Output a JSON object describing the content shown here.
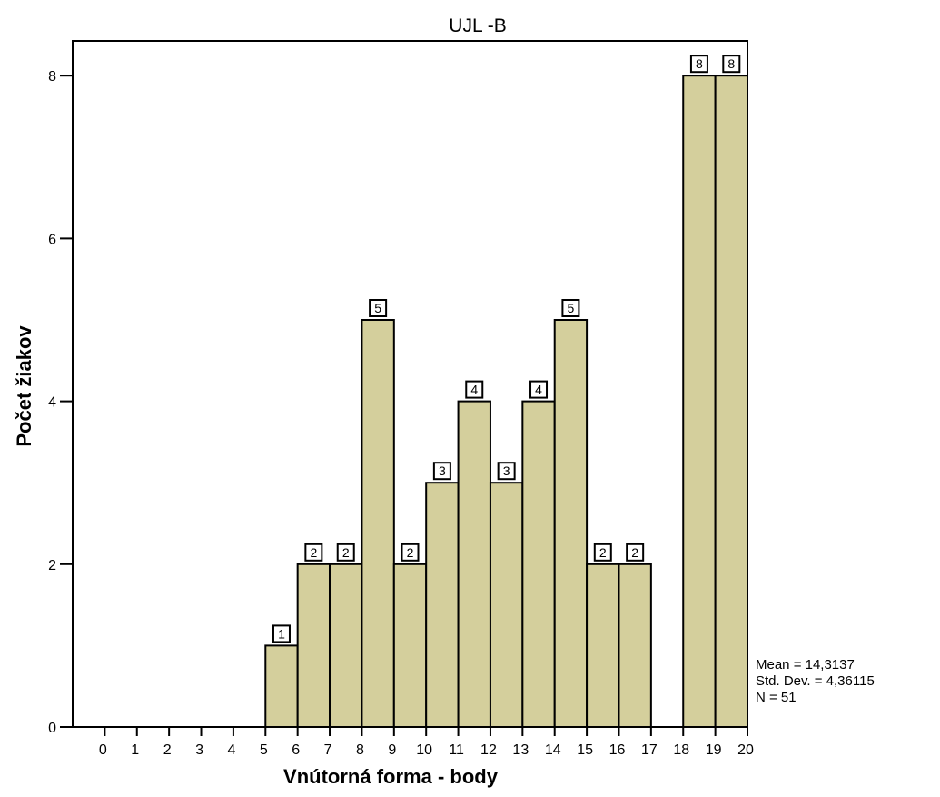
{
  "chart_data": {
    "type": "bar",
    "title": "UJL -B",
    "xlabel": "Vnútorná forma - body",
    "ylabel": "Počet žiakov",
    "x_ticks": [
      "0",
      "1",
      "2",
      "3",
      "4",
      "5",
      "6",
      "7",
      "8",
      "9",
      "10",
      "11",
      "12",
      "13",
      "14",
      "15",
      "16",
      "17",
      "18",
      "19",
      "20"
    ],
    "y_ticks": [
      "0",
      "2",
      "4",
      "6",
      "8"
    ],
    "xlim": [
      0,
      20
    ],
    "ylim": [
      0,
      8.8
    ],
    "bins": [
      {
        "x0": 6,
        "x1": 7,
        "value": 1
      },
      {
        "x0": 7,
        "x1": 8,
        "value": 2
      },
      {
        "x0": 8,
        "x1": 9,
        "value": 2
      },
      {
        "x0": 9,
        "x1": 10,
        "value": 5
      },
      {
        "x0": 10,
        "x1": 11,
        "value": 2
      },
      {
        "x0": 11,
        "x1": 12,
        "value": 3
      },
      {
        "x0": 12,
        "x1": 13,
        "value": 4
      },
      {
        "x0": 13,
        "x1": 14,
        "value": 3
      },
      {
        "x0": 14,
        "x1": 15,
        "value": 4
      },
      {
        "x0": 15,
        "x1": 16,
        "value": 5
      },
      {
        "x0": 16,
        "x1": 17,
        "value": 2
      },
      {
        "x0": 17,
        "x1": 18,
        "value": 2
      },
      {
        "x0": 18,
        "x1": 19,
        "value": 0
      },
      {
        "x0": 19,
        "x1": 20,
        "value": 8
      },
      {
        "x0": 20,
        "x1": 21,
        "value": 8
      }
    ],
    "bar_color": "#d4cf9c",
    "grid": false,
    "statistics": [
      "Mean = 14,3137",
      "Std. Dev. = 4,36115",
      "N = 51"
    ]
  }
}
